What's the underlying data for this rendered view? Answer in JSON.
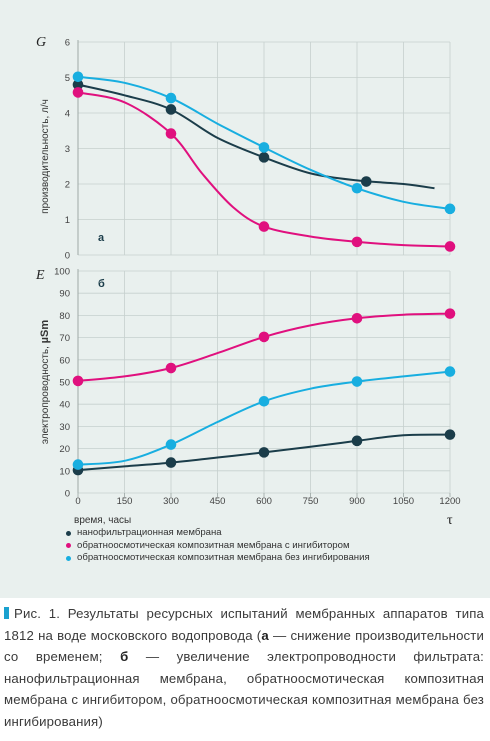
{
  "chart_data": [
    {
      "id": "a",
      "type": "line",
      "panel_label": "а",
      "y_symbol": "G",
      "ylabel": "производительность, л/ч",
      "ylim": [
        0,
        6
      ],
      "yticks": [
        "0",
        "1",
        "2",
        "3",
        "4",
        "5",
        "6"
      ],
      "series": [
        {
          "key": "nf",
          "color": "#1b3d4a",
          "curve": [
            [
              0,
              4.8
            ],
            [
              150,
              4.5
            ],
            [
              300,
              4.1
            ],
            [
              450,
              3.3
            ],
            [
              600,
              2.75
            ],
            [
              750,
              2.3
            ],
            [
              900,
              2.1
            ],
            [
              1050,
              2.0
            ],
            [
              1150,
              1.88
            ]
          ],
          "points": [
            [
              0,
              4.8
            ],
            [
              300,
              4.1
            ],
            [
              600,
              2.75
            ],
            [
              930,
              2.07
            ]
          ]
        },
        {
          "key": "ro_inh",
          "color": "#e0107e",
          "curve": [
            [
              0,
              4.58
            ],
            [
              150,
              4.3
            ],
            [
              300,
              3.42
            ],
            [
              400,
              2.3
            ],
            [
              500,
              1.35
            ],
            [
              600,
              0.8
            ],
            [
              750,
              0.52
            ],
            [
              900,
              0.37
            ],
            [
              1050,
              0.28
            ],
            [
              1200,
              0.24
            ]
          ],
          "points": [
            [
              0,
              4.58
            ],
            [
              300,
              3.42
            ],
            [
              600,
              0.8
            ],
            [
              900,
              0.37
            ],
            [
              1200,
              0.24
            ]
          ]
        },
        {
          "key": "ro_noinh",
          "color": "#18aee0",
          "curve": [
            [
              0,
              5.02
            ],
            [
              150,
              4.85
            ],
            [
              300,
              4.42
            ],
            [
              450,
              3.7
            ],
            [
              600,
              3.03
            ],
            [
              750,
              2.4
            ],
            [
              900,
              1.88
            ],
            [
              1050,
              1.5
            ],
            [
              1200,
              1.3
            ]
          ],
          "points": [
            [
              0,
              5.02
            ],
            [
              300,
              4.42
            ],
            [
              600,
              3.03
            ],
            [
              900,
              1.88
            ],
            [
              1200,
              1.3
            ]
          ]
        }
      ]
    },
    {
      "id": "b",
      "type": "line",
      "panel_label": "б",
      "y_symbol": "E",
      "ylabel_text": "электропроводность,",
      "ylabel_unit": "µSm",
      "ylim": [
        0,
        100
      ],
      "yticks": [
        "0",
        "10",
        "20",
        "30",
        "40",
        "50",
        "60",
        "70",
        "80",
        "90",
        "100"
      ],
      "xlabel": "время, часы",
      "x_symbol": "τ",
      "xlim": [
        0,
        1200
      ],
      "xticks": [
        "0",
        "150",
        "300",
        "450",
        "600",
        "750",
        "900",
        "1050",
        "1200"
      ],
      "series": [
        {
          "key": "nf",
          "color": "#1b3d4a",
          "curve": [
            [
              0,
              10.3
            ],
            [
              150,
              12
            ],
            [
              300,
              13.7
            ],
            [
              450,
              16
            ],
            [
              600,
              18.3
            ],
            [
              750,
              20.8
            ],
            [
              900,
              23.5
            ],
            [
              1050,
              26
            ],
            [
              1200,
              26.3
            ]
          ],
          "points": [
            [
              0,
              10.3
            ],
            [
              300,
              13.7
            ],
            [
              600,
              18.3
            ],
            [
              900,
              23.5
            ],
            [
              1200,
              26.3
            ]
          ]
        },
        {
          "key": "ro_inh",
          "color": "#e0107e",
          "curve": [
            [
              0,
              50.5
            ],
            [
              150,
              52.5
            ],
            [
              300,
              56.3
            ],
            [
              450,
              63
            ],
            [
              600,
              70.3
            ],
            [
              750,
              75.5
            ],
            [
              900,
              78.7
            ],
            [
              1050,
              80.3
            ],
            [
              1200,
              80.8
            ]
          ],
          "points": [
            [
              0,
              50.5
            ],
            [
              300,
              56.3
            ],
            [
              600,
              70.3
            ],
            [
              900,
              78.7
            ],
            [
              1200,
              80.8
            ]
          ]
        },
        {
          "key": "ro_noinh",
          "color": "#18aee0",
          "curve": [
            [
              0,
              12.8
            ],
            [
              150,
              14.5
            ],
            [
              300,
              21.8
            ],
            [
              450,
              32
            ],
            [
              600,
              41.3
            ],
            [
              750,
              47
            ],
            [
              900,
              50.2
            ],
            [
              1050,
              52.5
            ],
            [
              1200,
              54.7
            ]
          ],
          "points": [
            [
              0,
              12.8
            ],
            [
              300,
              21.8
            ],
            [
              600,
              41.3
            ],
            [
              900,
              50.2
            ],
            [
              1200,
              54.7
            ]
          ]
        }
      ]
    }
  ],
  "legend": [
    {
      "label": "нанофильтрационная мембрана",
      "color": "#1b3d4a"
    },
    {
      "label": "обратноосмотическая композитная мембрана с ингибитором",
      "color": "#e0107e"
    },
    {
      "label": "обратноосмотическая композитная мембрана без ингибирования",
      "color": "#18aee0"
    }
  ],
  "caption": {
    "p1": "Рис. 1. Результаты ресурсных испытаний мембранных аппаратов типа 1812 на воде московского водопровода (",
    "a": "а",
    "p2": " — снижение производительности со временем; ",
    "b": "б",
    "p3": " — увеличение электропроводности фильтрата: нанофильтрационная мембрана, обратноосмотическая композитная мембрана с ингибитором, обратноосмотическая композитная мембрана без ингибирования)"
  }
}
